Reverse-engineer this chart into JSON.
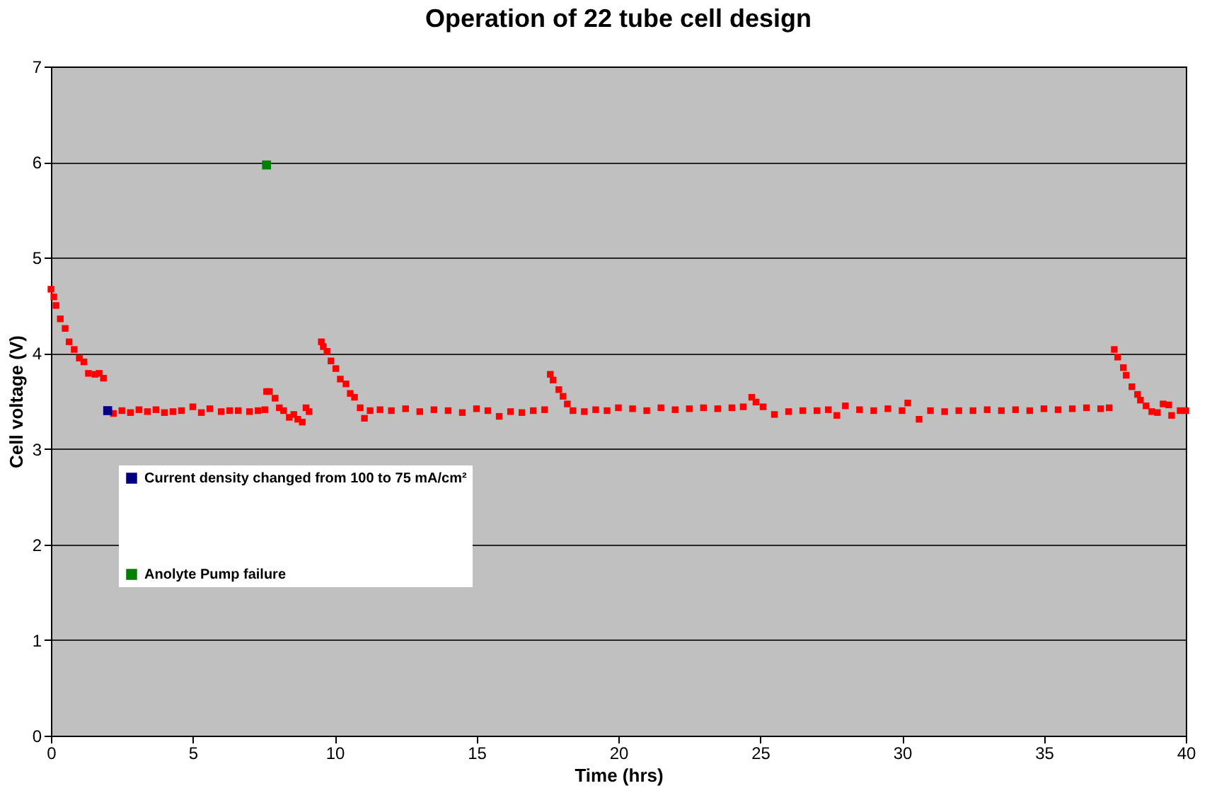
{
  "chart_data": {
    "type": "scatter",
    "title": "Operation of 22 tube cell design",
    "xlabel": "Time (hrs)",
    "ylabel": "Cell voltage (V)",
    "xlim": [
      0,
      40
    ],
    "xticks": [
      0,
      5,
      10,
      15,
      20,
      25,
      30,
      35,
      40
    ],
    "ylim": [
      0,
      7
    ],
    "yticks": [
      0,
      1,
      2,
      3,
      4,
      5,
      6,
      7
    ],
    "grid": "y",
    "legend": "bottom left",
    "marker": "square",
    "series": [
      {
        "color": "#ff0000",
        "x": [
          0,
          0.1,
          0.18,
          0.33,
          0.5,
          0.64,
          0.82,
          1.0,
          1.16,
          1.32,
          1.55,
          1.7,
          1.85,
          1.95,
          2.2,
          2.5,
          2.8,
          3.1,
          3.4,
          3.7,
          4.0,
          4.3,
          4.6,
          5.0,
          5.3,
          5.6,
          6.0,
          6.3,
          6.6,
          7.0,
          7.3,
          7.54,
          7.6,
          7.7,
          7.9,
          8.05,
          8.2,
          8.4,
          8.56,
          8.7,
          8.86,
          8.99,
          9.1,
          9.53,
          9.6,
          9.73,
          9.87,
          10.04,
          10.2,
          10.4,
          10.55,
          10.7,
          10.9,
          11.05,
          11.25,
          11.6,
          12.0,
          12.5,
          13.0,
          13.5,
          14.0,
          14.5,
          15.0,
          15.4,
          15.8,
          16.2,
          16.6,
          17.0,
          17.4,
          17.6,
          17.7,
          17.9,
          18.05,
          18.2,
          18.4,
          18.8,
          19.2,
          19.6,
          20.0,
          20.5,
          21.0,
          21.5,
          22.0,
          22.5,
          23.0,
          23.5,
          24.0,
          24.4,
          24.7,
          24.85,
          25.1,
          25.5,
          26.0,
          26.5,
          27.0,
          27.4,
          27.7,
          28.0,
          28.5,
          29.0,
          29.5,
          30.0,
          30.2,
          30.6,
          31.0,
          31.5,
          32.0,
          32.5,
          33.0,
          33.5,
          34.0,
          34.5,
          35.0,
          35.5,
          36.0,
          36.5,
          37.0,
          37.3,
          37.48,
          37.6,
          37.8,
          37.9,
          38.1,
          38.3,
          38.4,
          38.6,
          38.8,
          39.0,
          39.2,
          39.4,
          39.5,
          39.8,
          40.0
        ],
        "values": [
          4.67,
          4.59,
          4.5,
          4.36,
          4.26,
          4.12,
          4.04,
          3.95,
          3.91,
          3.79,
          3.78,
          3.79,
          3.74,
          null,
          3.37,
          3.4,
          3.38,
          3.41,
          3.39,
          3.41,
          3.38,
          3.39,
          3.4,
          3.44,
          3.38,
          3.42,
          3.39,
          3.4,
          3.4,
          3.39,
          3.4,
          3.41,
          3.6,
          3.6,
          3.53,
          3.43,
          3.4,
          3.33,
          3.36,
          3.31,
          3.28,
          3.43,
          3.39,
          4.12,
          4.07,
          4.02,
          3.92,
          3.84,
          3.73,
          3.68,
          3.58,
          3.54,
          3.43,
          3.32,
          3.4,
          3.41,
          3.4,
          3.42,
          3.39,
          3.41,
          3.4,
          3.38,
          3.42,
          3.4,
          3.34,
          3.39,
          3.38,
          3.4,
          3.41,
          3.78,
          3.72,
          3.62,
          3.55,
          3.47,
          3.4,
          3.39,
          3.41,
          3.4,
          3.43,
          3.42,
          3.4,
          3.43,
          3.41,
          3.42,
          3.43,
          3.42,
          3.43,
          3.44,
          3.54,
          3.49,
          3.44,
          3.36,
          3.39,
          3.4,
          3.4,
          3.41,
          3.35,
          3.45,
          3.41,
          3.4,
          3.42,
          3.4,
          3.48,
          3.31,
          3.4,
          3.39,
          3.4,
          3.4,
          3.41,
          3.4,
          3.41,
          3.4,
          3.42,
          3.41,
          3.42,
          3.43,
          3.42,
          3.43,
          4.04,
          3.96,
          3.85,
          3.77,
          3.65,
          3.57,
          3.51,
          3.45,
          3.39,
          3.38,
          3.47,
          3.46,
          3.35,
          3.4,
          3.4
        ]
      },
      {
        "name": "Current density changed from 100 to 75 mA/cm²",
        "color": "#000080",
        "x": [
          2.0
        ],
        "values": [
          3.4
        ]
      },
      {
        "name": "Anolyte Pump failure",
        "color": "#008000",
        "x": [
          7.6
        ],
        "values": [
          5.97
        ]
      }
    ]
  }
}
